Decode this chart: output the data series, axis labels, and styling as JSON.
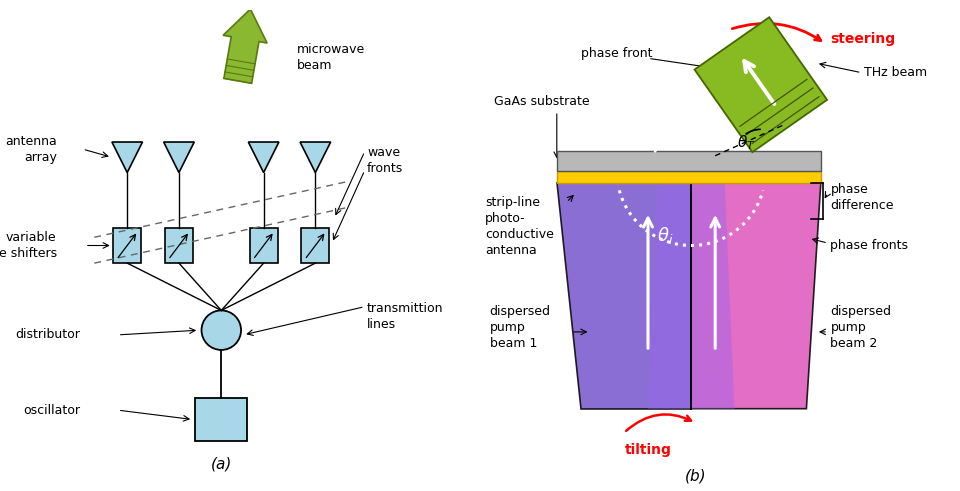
{
  "fig_width": 9.6,
  "fig_height": 4.91,
  "bg_color": "#ffffff",
  "panel_a": {
    "label": "(a)",
    "component_color": "#a8d8e8",
    "beam_fill": "#8ab830",
    "beam_edge": "#5a7a10",
    "beam_stripe": "#5a7a10",
    "dash_color": "#666666",
    "texts": {
      "microwave_beam": "microwave\nbeam",
      "antenna_array": "antenna\narray",
      "wave_fronts": "wave\nfronts",
      "variable_phase_shifters": "variable\nphase shifters",
      "distributor": "distributor",
      "oscillator": "oscillator",
      "transmittion_lines": "transmittion\nlines"
    }
  },
  "panel_b": {
    "label": "(b)",
    "gaas_fill": "#b8b8b8",
    "gold_fill": "#ffcc00",
    "thz_fill": "#88bb22",
    "thz_edge": "#446600",
    "left_fill": "#7755cc",
    "right_fill": "#dd55bb",
    "center_fill": "#aa66ee",
    "steering_color": "#cc0000",
    "tilting_color": "#cc0000",
    "texts": {
      "steering": "steering",
      "THz_beam": "THz beam",
      "phase_front": "phase front",
      "GaAs_substrate": "GaAs substrate",
      "strip_line": "strip-line\nphoto-\nconductive\nantenna",
      "phase_difference": "phase\ndifference",
      "phase_fronts": "phase fronts",
      "dispersed_pump_beam_1": "dispersed\npump\nbeam 1",
      "dispersed_pump_beam_2": "dispersed\npump\nbeam 2",
      "tilting": "tilting"
    }
  }
}
